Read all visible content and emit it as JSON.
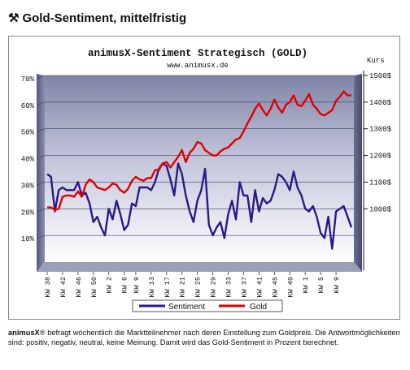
{
  "header": {
    "icon": "hammer-pick-icon",
    "title": "Gold-Sentiment, mittelfristig"
  },
  "chart_data": {
    "type": "line",
    "title": "animusX-Sentiment Strategisch (GOLD)",
    "subtitle": "www.animusx.de",
    "y2label": "Kurs",
    "ylim": [
      0,
      70
    ],
    "y2lim": [
      800,
      1500
    ],
    "yticks": [
      "10%",
      "20%",
      "30%",
      "40%",
      "50%",
      "60%",
      "70%"
    ],
    "yticks_values": [
      10,
      20,
      30,
      40,
      50,
      60,
      70
    ],
    "y2ticks": [
      "1000$",
      "1100$",
      "1200$",
      "1300$",
      "1400$",
      "1500$"
    ],
    "y2ticks_values": [
      1000,
      1100,
      1200,
      1300,
      1400,
      1500
    ],
    "xticks": [
      "KW 38",
      "KW 42",
      "KW 46",
      "KW 50",
      "KW 2",
      "KW 6",
      "KW 9",
      "KW 13",
      "KW 17",
      "KW 21",
      "KW 25",
      "KW 29",
      "KW 33",
      "KW 37",
      "KW 41",
      "KW 45",
      "KW 49",
      "KW 1",
      "KW 5",
      "KW 9"
    ],
    "xtick_index": [
      0,
      4,
      8,
      12,
      16,
      20,
      23,
      27,
      31,
      35,
      39,
      43,
      47,
      51,
      55,
      59,
      63,
      67,
      71,
      75
    ],
    "legend_position": "bottom",
    "grid": "horizontal",
    "series": [
      {
        "name": "Sentiment",
        "color": "#2b1a86",
        "axis": "left",
        "values": [
          33,
          32,
          19,
          27,
          28,
          27,
          27,
          27,
          30,
          25,
          26,
          22,
          15,
          17,
          13,
          10,
          20,
          16,
          23,
          18,
          12,
          14,
          22,
          21,
          28,
          28,
          28,
          27,
          30,
          35,
          37,
          36,
          31,
          25,
          37,
          33,
          25,
          19,
          15,
          23,
          27,
          35,
          14,
          10,
          13,
          15,
          9,
          18,
          23,
          16,
          30,
          25,
          25,
          15,
          27,
          19,
          24,
          22,
          23,
          27,
          33,
          32,
          30,
          27,
          34,
          28,
          25,
          20,
          19,
          21,
          17,
          11,
          9,
          17,
          5,
          19,
          20,
          21,
          17,
          13
        ]
      },
      {
        "name": "Gold",
        "color": "#e00000",
        "axis": "right",
        "values": [
          1005,
          1005,
          995,
          1000,
          1045,
          1050,
          1050,
          1045,
          1065,
          1045,
          1090,
          1110,
          1100,
          1080,
          1075,
          1070,
          1080,
          1095,
          1090,
          1070,
          1060,
          1075,
          1105,
          1120,
          1110,
          1105,
          1115,
          1115,
          1145,
          1145,
          1170,
          1175,
          1155,
          1175,
          1195,
          1220,
          1175,
          1210,
          1225,
          1250,
          1245,
          1220,
          1210,
          1200,
          1200,
          1215,
          1225,
          1230,
          1245,
          1260,
          1265,
          1290,
          1320,
          1345,
          1375,
          1395,
          1370,
          1350,
          1375,
          1410,
          1380,
          1360,
          1390,
          1400,
          1425,
          1390,
          1385,
          1405,
          1430,
          1390,
          1375,
          1355,
          1350,
          1360,
          1370,
          1405,
          1420,
          1440,
          1425,
          1425
        ]
      }
    ]
  },
  "footer": {
    "brand": "animusX",
    "registered": "®",
    "text": " befragt wöchentlich die Marktteilnehmer nach deren Einstellung zum Goldpreis. Die Antwortmöglichkeiten sind: positiv, negativ, neutral, keine Meinung. Damit wird das Gold-Sentiment in Prozent berechnet."
  }
}
